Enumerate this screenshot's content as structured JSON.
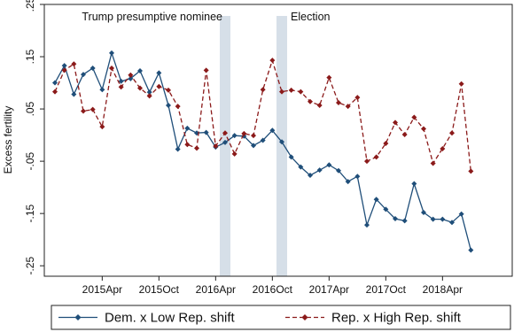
{
  "chart_data": {
    "type": "line",
    "title": "",
    "xlabel": "",
    "ylabel": "Excess fertility",
    "ylim": [
      -0.27,
      0.25
    ],
    "yticks": [
      0.25,
      0.15,
      0.05,
      -0.05,
      -0.15,
      -0.25
    ],
    "ytick_labels": [
      ".25",
      ".15",
      ".05",
      "-.05",
      "-.15",
      "-.25"
    ],
    "x_start": "2014-11",
    "x_end": "2018-11",
    "xticks": [
      "2015-04",
      "2015-10",
      "2016-04",
      "2016-10",
      "2017-04",
      "2017-10",
      "2018-04"
    ],
    "xtick_labels": [
      "2015Apr",
      "2015Oct",
      "2016Apr",
      "2016Oct",
      "2017Apr",
      "2017Oct",
      "2018Apr"
    ],
    "grid": false,
    "legend_position": "bottom",
    "annotations": [
      {
        "label": "Trump presumptive nominee",
        "date": "2016-05"
      },
      {
        "label": "Election",
        "date": "2016-11"
      }
    ],
    "series": [
      {
        "name": "Dem. x Low Rep. shift",
        "color": "#1f4e79",
        "marker": "diamond",
        "line": "solid",
        "values": [
          0.1,
          0.133,
          0.078,
          0.116,
          0.128,
          0.087,
          0.157,
          0.103,
          0.108,
          0.123,
          0.082,
          0.119,
          0.057,
          -0.027,
          0.013,
          0.004,
          0.005,
          -0.023,
          -0.014,
          -0.001,
          -0.002,
          -0.02,
          -0.01,
          0.009,
          -0.013,
          -0.042,
          -0.061,
          -0.077,
          -0.067,
          -0.057,
          -0.068,
          -0.089,
          -0.079,
          -0.172,
          -0.123,
          -0.142,
          -0.16,
          -0.164,
          -0.093,
          -0.148,
          -0.161,
          -0.161,
          -0.167,
          -0.151,
          -0.22
        ]
      },
      {
        "name": "Rep. x High Rep. shift",
        "color": "#8b1a1a",
        "marker": "diamond",
        "line": "dashed",
        "values": [
          0.083,
          0.124,
          0.136,
          0.046,
          0.049,
          0.016,
          0.128,
          0.092,
          0.115,
          0.09,
          0.075,
          0.093,
          0.086,
          0.055,
          -0.018,
          -0.025,
          0.124,
          -0.021,
          0.004,
          -0.036,
          0.003,
          -0.001,
          0.087,
          0.143,
          0.083,
          0.086,
          0.083,
          0.064,
          0.057,
          0.11,
          0.062,
          0.055,
          0.072,
          -0.05,
          -0.042,
          -0.016,
          0.024,
          0.001,
          0.034,
          0.012,
          -0.054,
          -0.026,
          0.004,
          0.098,
          -0.069
        ]
      }
    ]
  }
}
